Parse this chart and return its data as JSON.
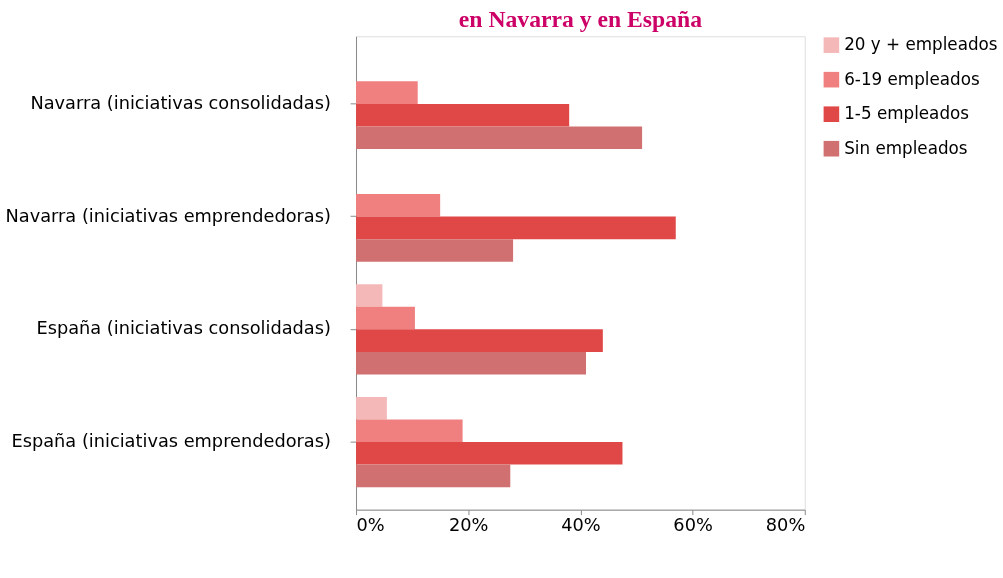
{
  "chart_data": {
    "type": "bar",
    "orientation": "horizontal",
    "title": "en Navarra y en España",
    "categories": [
      "Navarra (iniciativas consolidadas)",
      "Navarra (iniciativas emprendedoras)",
      "España (iniciativas consolidadas)",
      "España (iniciativas emprendedoras)"
    ],
    "series": [
      {
        "name": "20 y + empleados",
        "color": "#f4b8b8",
        "values": [
          0,
          0,
          4.7,
          5.5
        ]
      },
      {
        "name": "6-19 empleados",
        "color": "#f08080",
        "values": [
          11,
          15,
          10.5,
          19
        ]
      },
      {
        "name": "1-5 empleados",
        "color": "#e04848",
        "values": [
          38,
          57,
          44,
          47.5
        ]
      },
      {
        "name": "Sin empleados",
        "color": "#d07070",
        "values": [
          51,
          28,
          41,
          27.5
        ]
      }
    ],
    "xlim": [
      0,
      80
    ],
    "xticks": [
      {
        "value": 0,
        "label": "0%"
      },
      {
        "value": 20,
        "label": "20%"
      },
      {
        "value": 40,
        "label": "40%"
      },
      {
        "value": 60,
        "label": "60%"
      },
      {
        "value": 80,
        "label": "80%"
      }
    ],
    "legend": "right",
    "grid": false
  }
}
